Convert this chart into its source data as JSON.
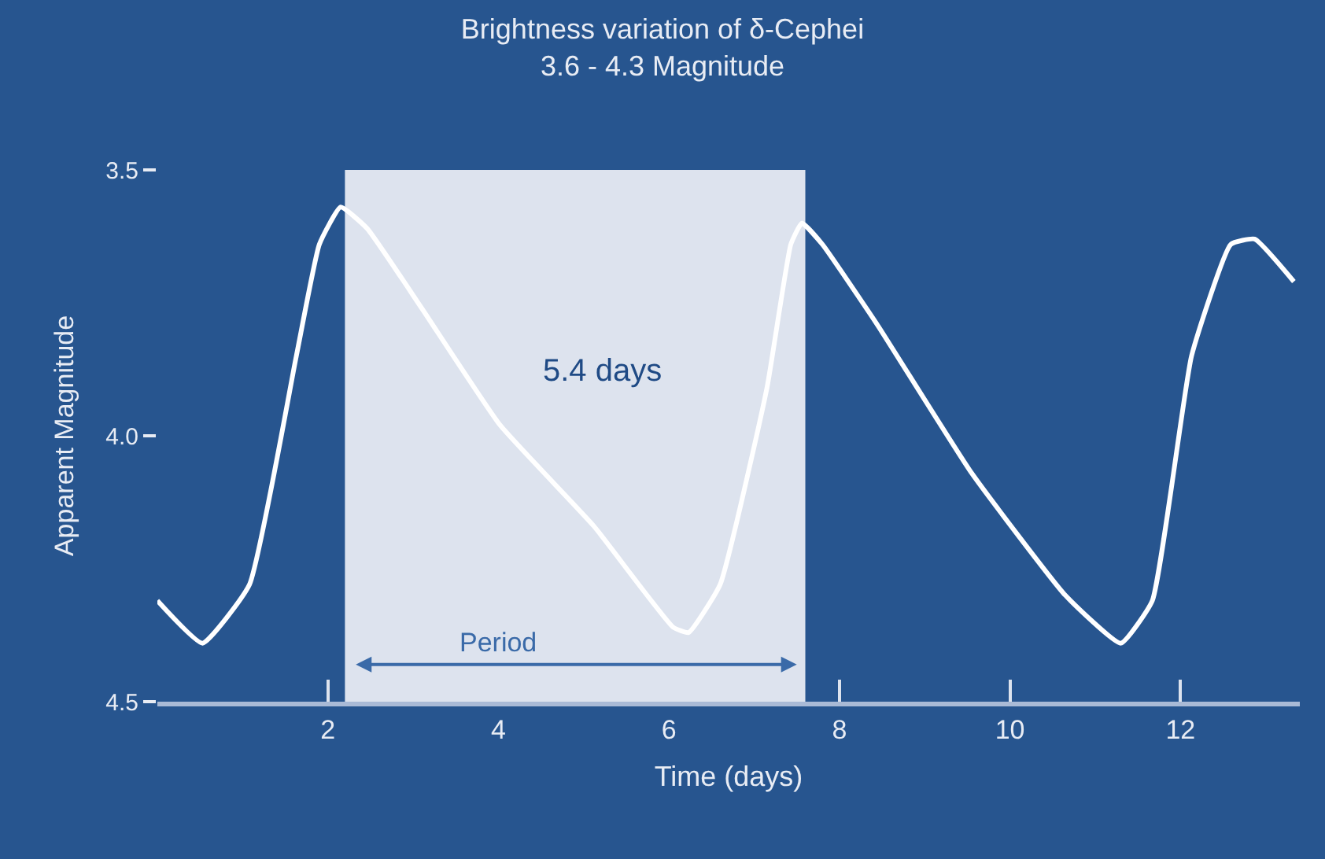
{
  "chart_data": {
    "type": "line",
    "title": "Brightness variation of δ-Cephei",
    "subtitle": "3.6 - 4.3 Magnitude",
    "xlabel": "Time (days)",
    "ylabel": "Apparent Magnitude",
    "x": [
      0,
      0.53,
      1.08,
      1.63,
      1.9,
      2.15,
      2.46,
      3.1,
      4.02,
      5.12,
      6.05,
      6.23,
      6.6,
      7.15,
      7.43,
      7.56,
      7.8,
      8.44,
      9.55,
      10.65,
      11.3,
      11.67,
      12.13,
      12.59,
      12.87,
      13.33
    ],
    "series": [
      {
        "color": "#ffffff",
        "values": [
          4.31,
          4.39,
          4.28,
          3.85,
          3.64,
          3.57,
          3.61,
          3.76,
          3.98,
          4.17,
          4.36,
          4.37,
          4.28,
          3.91,
          3.64,
          3.6,
          3.64,
          3.79,
          4.07,
          4.3,
          4.39,
          4.31,
          3.85,
          3.64,
          3.63,
          3.71
        ]
      }
    ],
    "xlim": [
      0,
      13.4
    ],
    "ylim": [
      4.5,
      3.5
    ],
    "xticks": [
      2,
      4,
      6,
      8,
      10,
      12
    ],
    "yticks": [
      3.5,
      {
        "value": 4.0,
        "label": "4.0"
      },
      4.5
    ],
    "bands": [
      {
        "axis": "x",
        "from": 2.2,
        "to": 7.6,
        "label": "Period",
        "color": "#dde3ee"
      }
    ],
    "annotations": [
      "5.4 days"
    ],
    "grid": false,
    "marker": "none",
    "line_style": "solid"
  }
}
